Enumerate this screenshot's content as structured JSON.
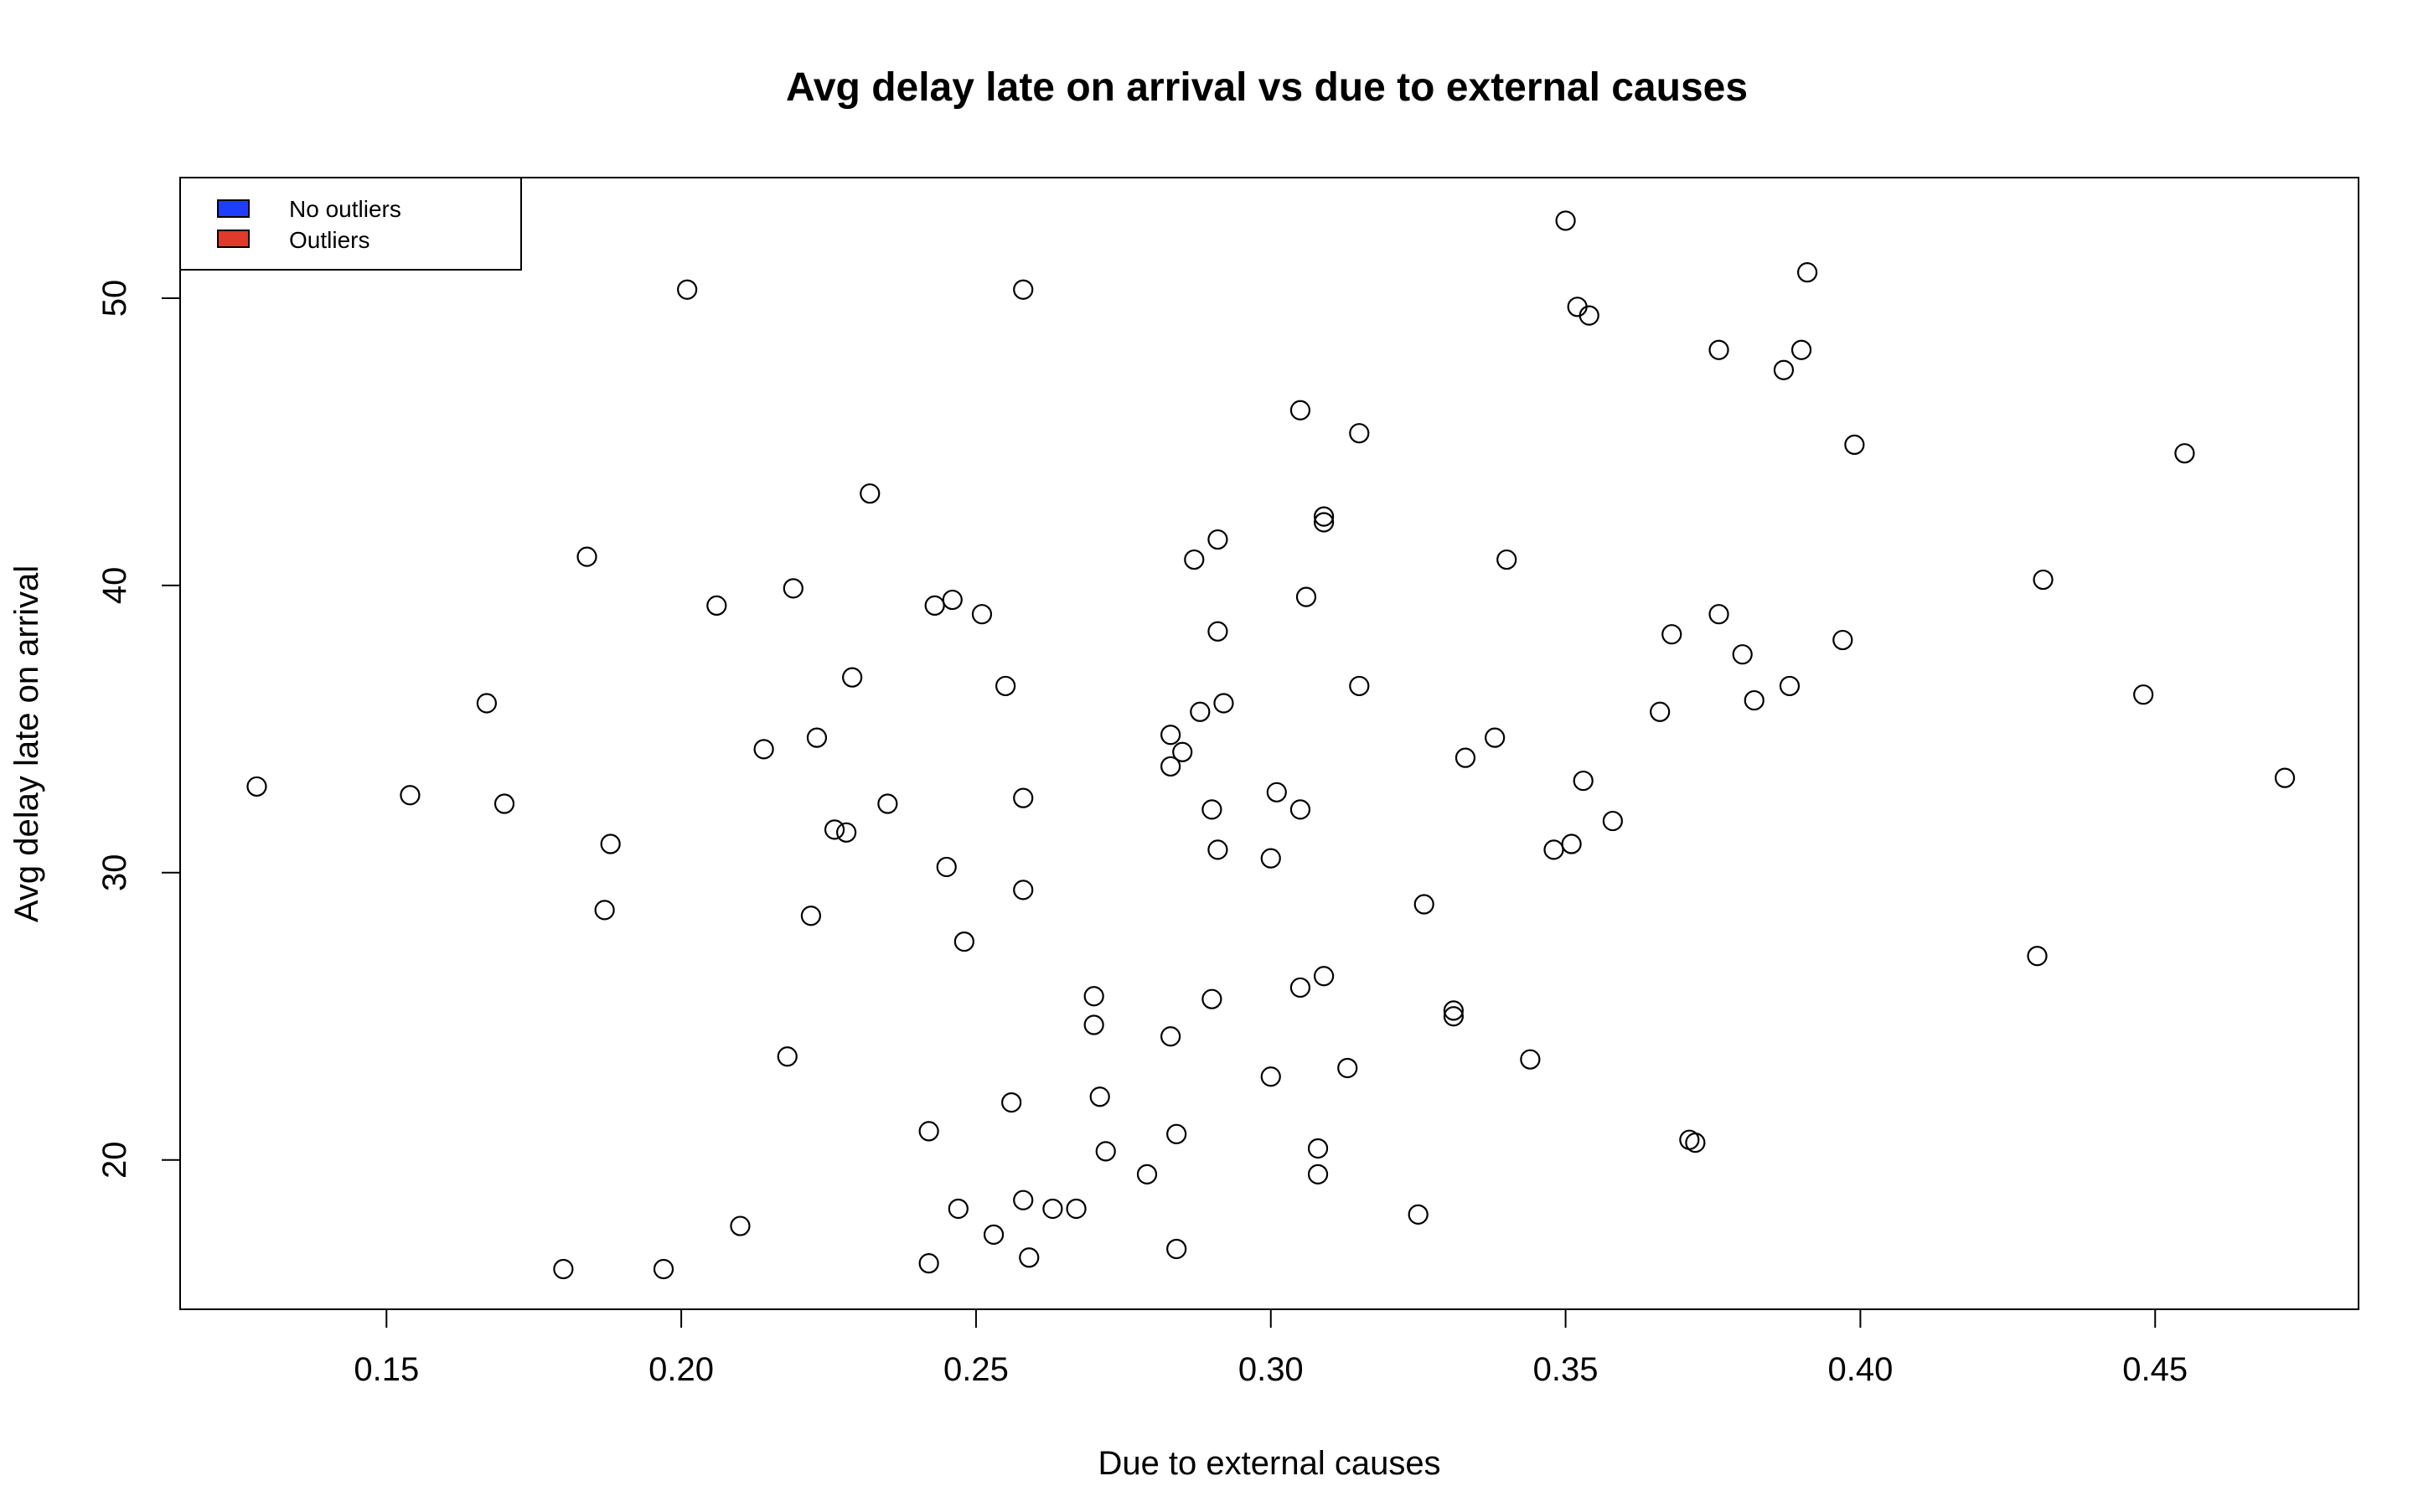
{
  "chart_data": {
    "type": "scatter",
    "title": "Avg delay late on arrival vs due to external causes",
    "xlabel": "Due to external causes",
    "ylabel": "Avg delay late on arrival",
    "xlim": [
      0.115,
      0.4845
    ],
    "ylim": [
      14.8,
      54.2
    ],
    "x_ticks": [
      0.15,
      0.2,
      0.25,
      0.3,
      0.35,
      0.4,
      0.45
    ],
    "x_tick_labels": [
      "0.15",
      "0.20",
      "0.25",
      "0.30",
      "0.35",
      "0.40",
      "0.45"
    ],
    "y_ticks": [
      20,
      30,
      40,
      50
    ],
    "y_tick_labels": [
      "20",
      "30",
      "40",
      "50"
    ],
    "grid": false,
    "legend": {
      "position": "top-left",
      "entries": [
        {
          "label": "No outliers",
          "color": "#1f3dff"
        },
        {
          "label": "Outliers",
          "color": "#e03a2a"
        }
      ]
    },
    "marker": {
      "shape": "open-circle",
      "color": "#000000"
    },
    "points": [
      {
        "x": 0.128,
        "y": 33.0
      },
      {
        "x": 0.154,
        "y": 32.7
      },
      {
        "x": 0.167,
        "y": 35.9
      },
      {
        "x": 0.17,
        "y": 32.4
      },
      {
        "x": 0.18,
        "y": 16.2
      },
      {
        "x": 0.184,
        "y": 41.0
      },
      {
        "x": 0.187,
        "y": 28.7
      },
      {
        "x": 0.188,
        "y": 31.0
      },
      {
        "x": 0.197,
        "y": 16.2
      },
      {
        "x": 0.201,
        "y": 50.3
      },
      {
        "x": 0.206,
        "y": 39.3
      },
      {
        "x": 0.21,
        "y": 17.7
      },
      {
        "x": 0.214,
        "y": 34.3
      },
      {
        "x": 0.218,
        "y": 23.6
      },
      {
        "x": 0.219,
        "y": 39.9
      },
      {
        "x": 0.222,
        "y": 28.5
      },
      {
        "x": 0.223,
        "y": 34.7
      },
      {
        "x": 0.226,
        "y": 31.5
      },
      {
        "x": 0.228,
        "y": 31.4
      },
      {
        "x": 0.229,
        "y": 36.8
      },
      {
        "x": 0.232,
        "y": 43.2
      },
      {
        "x": 0.235,
        "y": 32.4
      },
      {
        "x": 0.242,
        "y": 21.0
      },
      {
        "x": 0.242,
        "y": 16.4
      },
      {
        "x": 0.243,
        "y": 39.3
      },
      {
        "x": 0.245,
        "y": 30.2
      },
      {
        "x": 0.246,
        "y": 39.5
      },
      {
        "x": 0.247,
        "y": 18.3
      },
      {
        "x": 0.248,
        "y": 27.6
      },
      {
        "x": 0.251,
        "y": 39.0
      },
      {
        "x": 0.253,
        "y": 17.4
      },
      {
        "x": 0.255,
        "y": 36.5
      },
      {
        "x": 0.256,
        "y": 22.0
      },
      {
        "x": 0.258,
        "y": 50.3
      },
      {
        "x": 0.258,
        "y": 32.6
      },
      {
        "x": 0.258,
        "y": 29.4
      },
      {
        "x": 0.258,
        "y": 18.6
      },
      {
        "x": 0.259,
        "y": 16.6
      },
      {
        "x": 0.263,
        "y": 18.3
      },
      {
        "x": 0.267,
        "y": 18.3
      },
      {
        "x": 0.27,
        "y": 25.7
      },
      {
        "x": 0.27,
        "y": 24.7
      },
      {
        "x": 0.271,
        "y": 22.2
      },
      {
        "x": 0.272,
        "y": 20.3
      },
      {
        "x": 0.279,
        "y": 19.5
      },
      {
        "x": 0.283,
        "y": 24.3
      },
      {
        "x": 0.283,
        "y": 34.8
      },
      {
        "x": 0.283,
        "y": 33.7
      },
      {
        "x": 0.284,
        "y": 20.9
      },
      {
        "x": 0.284,
        "y": 16.9
      },
      {
        "x": 0.285,
        "y": 34.2
      },
      {
        "x": 0.287,
        "y": 40.9
      },
      {
        "x": 0.288,
        "y": 35.6
      },
      {
        "x": 0.29,
        "y": 25.6
      },
      {
        "x": 0.29,
        "y": 32.2
      },
      {
        "x": 0.291,
        "y": 41.6
      },
      {
        "x": 0.291,
        "y": 30.8
      },
      {
        "x": 0.291,
        "y": 38.4
      },
      {
        "x": 0.292,
        "y": 35.9
      },
      {
        "x": 0.3,
        "y": 22.9
      },
      {
        "x": 0.3,
        "y": 30.5
      },
      {
        "x": 0.301,
        "y": 32.8
      },
      {
        "x": 0.305,
        "y": 46.1
      },
      {
        "x": 0.305,
        "y": 32.2
      },
      {
        "x": 0.305,
        "y": 26.0
      },
      {
        "x": 0.306,
        "y": 39.6
      },
      {
        "x": 0.308,
        "y": 20.4
      },
      {
        "x": 0.308,
        "y": 19.5
      },
      {
        "x": 0.309,
        "y": 26.4
      },
      {
        "x": 0.309,
        "y": 42.4
      },
      {
        "x": 0.309,
        "y": 42.2
      },
      {
        "x": 0.313,
        "y": 23.2
      },
      {
        "x": 0.315,
        "y": 45.3
      },
      {
        "x": 0.315,
        "y": 36.5
      },
      {
        "x": 0.325,
        "y": 18.1
      },
      {
        "x": 0.326,
        "y": 28.9
      },
      {
        "x": 0.331,
        "y": 25.2
      },
      {
        "x": 0.331,
        "y": 25.0
      },
      {
        "x": 0.333,
        "y": 34.0
      },
      {
        "x": 0.338,
        "y": 34.7
      },
      {
        "x": 0.34,
        "y": 40.9
      },
      {
        "x": 0.344,
        "y": 23.5
      },
      {
        "x": 0.348,
        "y": 30.8
      },
      {
        "x": 0.35,
        "y": 52.7
      },
      {
        "x": 0.351,
        "y": 31.0
      },
      {
        "x": 0.352,
        "y": 49.7
      },
      {
        "x": 0.353,
        "y": 33.2
      },
      {
        "x": 0.354,
        "y": 49.4
      },
      {
        "x": 0.358,
        "y": 31.8
      },
      {
        "x": 0.366,
        "y": 35.6
      },
      {
        "x": 0.368,
        "y": 38.3
      },
      {
        "x": 0.371,
        "y": 20.7
      },
      {
        "x": 0.372,
        "y": 20.6
      },
      {
        "x": 0.376,
        "y": 48.2
      },
      {
        "x": 0.376,
        "y": 39.0
      },
      {
        "x": 0.38,
        "y": 37.6
      },
      {
        "x": 0.382,
        "y": 36.0
      },
      {
        "x": 0.387,
        "y": 47.5
      },
      {
        "x": 0.388,
        "y": 36.5
      },
      {
        "x": 0.39,
        "y": 48.2
      },
      {
        "x": 0.391,
        "y": 50.9
      },
      {
        "x": 0.397,
        "y": 38.1
      },
      {
        "x": 0.399,
        "y": 44.9
      },
      {
        "x": 0.43,
        "y": 27.1
      },
      {
        "x": 0.431,
        "y": 40.2
      },
      {
        "x": 0.448,
        "y": 36.2
      },
      {
        "x": 0.455,
        "y": 44.6
      },
      {
        "x": 0.472,
        "y": 33.3
      }
    ]
  }
}
